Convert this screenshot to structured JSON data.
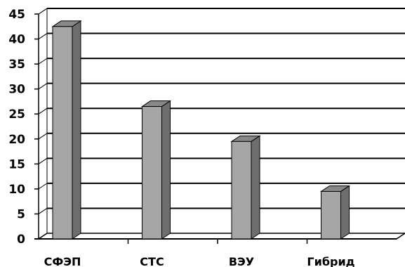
{
  "chart_data": {
    "type": "bar",
    "style": "3d-column",
    "categories": [
      "СФЭП",
      "СТС",
      "ВЭУ",
      "Гибрид"
    ],
    "values": [
      42.5,
      26.5,
      19.5,
      9.5
    ],
    "ylim": [
      0,
      45
    ],
    "yticks": [
      0,
      5,
      10,
      15,
      20,
      25,
      30,
      35,
      40,
      45
    ],
    "grid": true,
    "legend": "none",
    "colors": {
      "bar_front": "#a6a6a6",
      "bar_side": "#6e6e6e",
      "bar_top": "#888888",
      "gridline": "#000000"
    }
  }
}
